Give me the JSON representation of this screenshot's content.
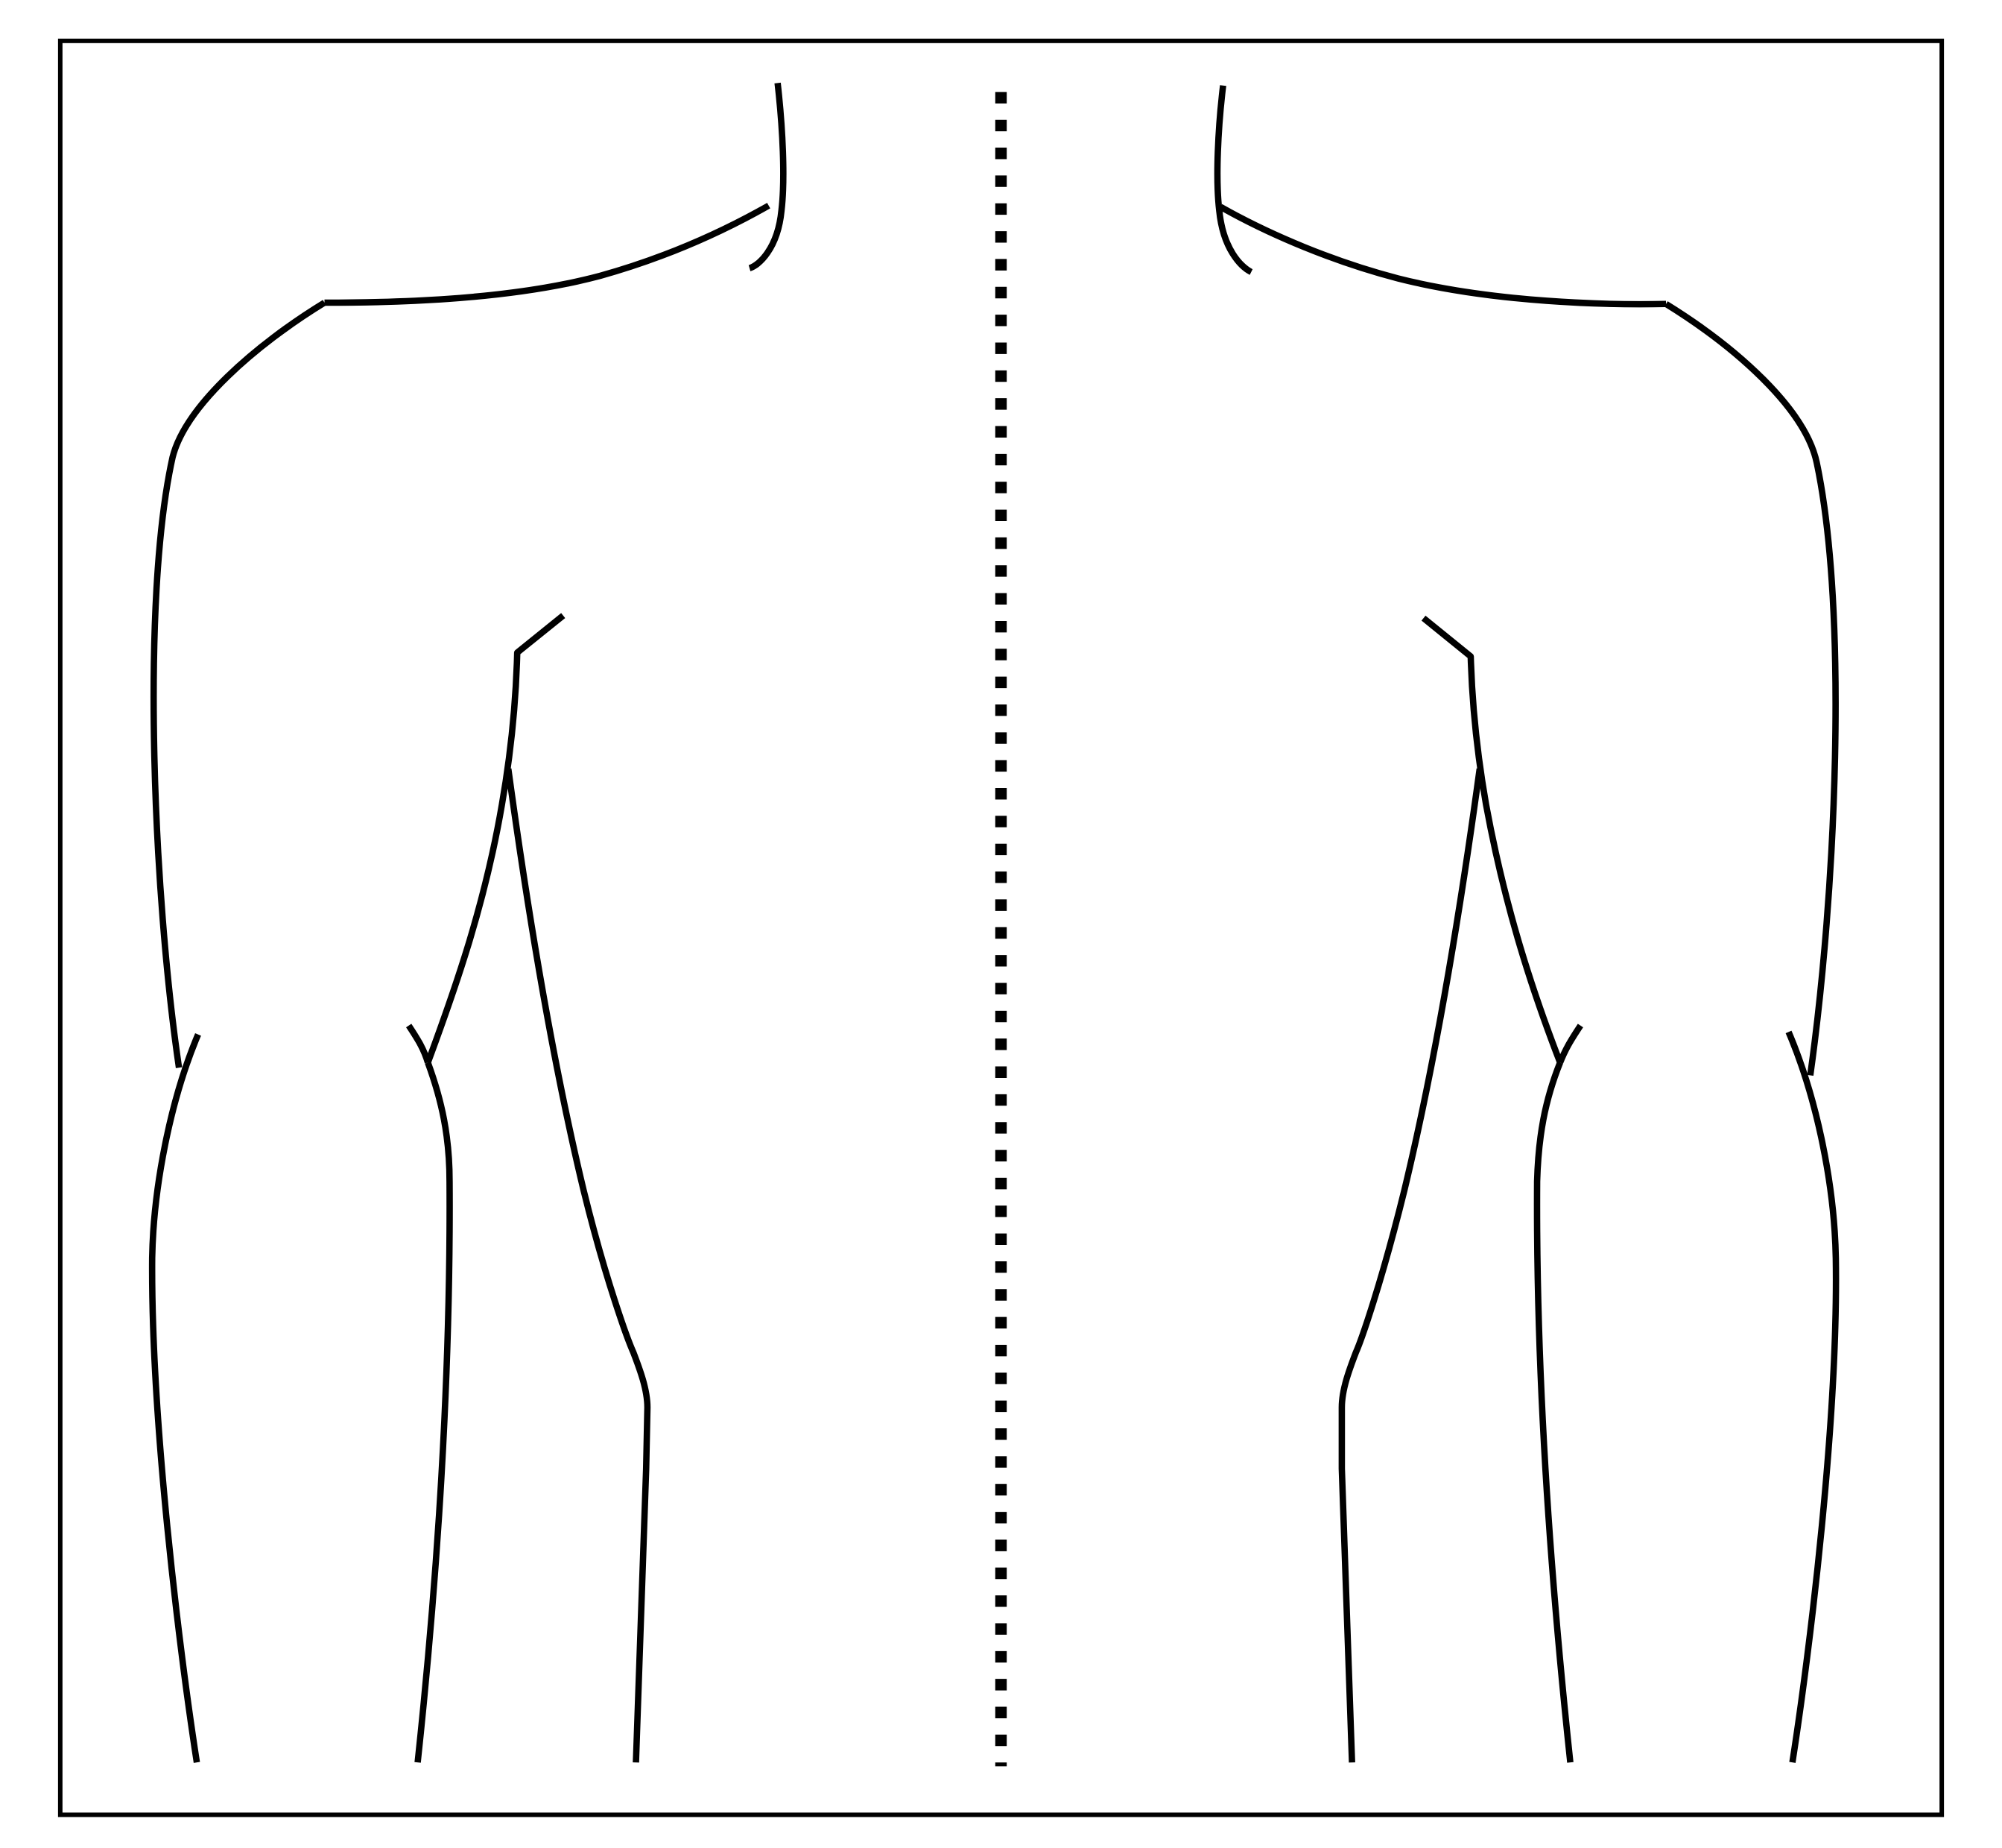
{
  "diagram": {
    "type": "torso-outline-back-view",
    "background": "#ffffff",
    "line_color": "#000000",
    "frame": true,
    "midline": {
      "style": "dashed",
      "visible": true
    }
  }
}
